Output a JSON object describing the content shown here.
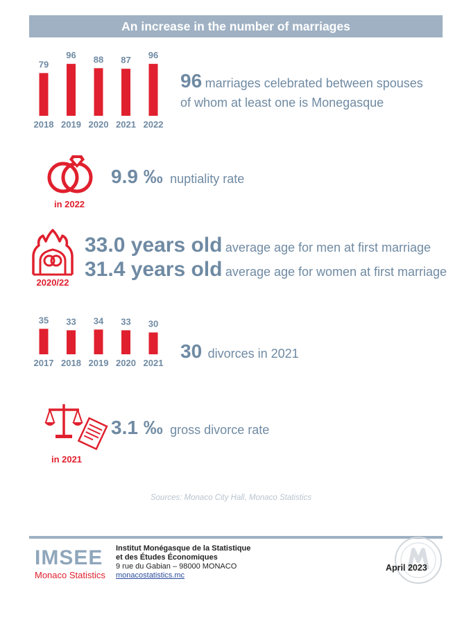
{
  "title": "An increase in the number of marriages",
  "chart_data": [
    {
      "type": "bar",
      "categories": [
        "2018",
        "2019",
        "2020",
        "2021",
        "2022"
      ],
      "values": [
        79,
        96,
        88,
        87,
        96
      ],
      "title": "",
      "xlabel": "",
      "ylabel": "",
      "ylim": [
        0,
        100
      ]
    },
    {
      "type": "bar",
      "categories": [
        "2017",
        "2018",
        "2019",
        "2020",
        "2021"
      ],
      "values": [
        35,
        33,
        34,
        33,
        30
      ],
      "title": "",
      "xlabel": "",
      "ylabel": "",
      "ylim": [
        0,
        40
      ]
    }
  ],
  "marriages": {
    "value": "96",
    "text_line1": "marriages celebrated between spouses",
    "text_line2": "of whom at least one is Monegasque"
  },
  "nuptiality": {
    "value": "9.9 ‰",
    "label": "nuptiality rate",
    "year": "in 2022"
  },
  "age": {
    "period": "2020/22",
    "men_value": "33.0 years old",
    "men_label": "average age for men at first marriage",
    "women_value": "31.4 years old",
    "women_label": "average age for women at first marriage"
  },
  "divorces": {
    "value": "30",
    "label": "divorces in 2021"
  },
  "divorce_rate": {
    "value": "3.1 ‰",
    "label": "gross divorce rate",
    "year": "in 2021"
  },
  "sources": "Sources: Monaco City Hall, Monaco Statistics",
  "footer": {
    "logo": "IMSEE",
    "logo_sub": "Monaco Statistics",
    "inst_line1": "Institut Monégasque de la Statistique",
    "inst_line2": "et des Études Économiques",
    "address": "9 rue du Gabian – 98000 MONACO",
    "website": "monacostatistics.mc",
    "date": "April 2023"
  },
  "colors": {
    "accent": "#e0202e",
    "slate": "#6f8aa3",
    "banner": "#9fb1c3"
  }
}
